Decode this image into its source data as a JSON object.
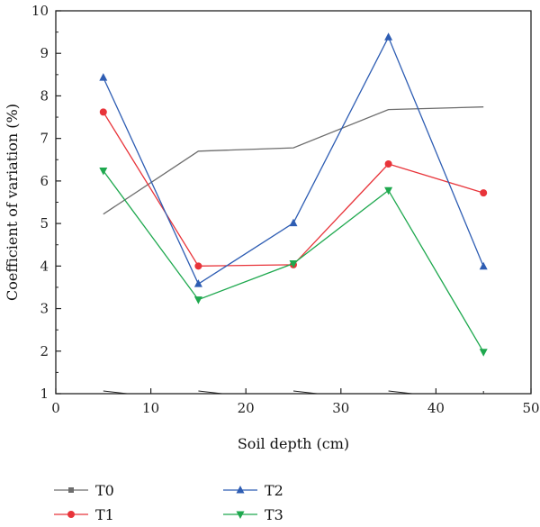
{
  "chart_data": {
    "type": "line",
    "xlabel": "Soil depth (cm)",
    "ylabel": "Coefficient of variation (%)",
    "xlim": [
      0,
      50
    ],
    "ylim": [
      1,
      10
    ],
    "xticks": [
      0,
      10,
      20,
      30,
      40,
      50
    ],
    "yticks": [
      1,
      2,
      3,
      4,
      5,
      6,
      7,
      8,
      9,
      10
    ],
    "grid": false,
    "legend_position": "bottom",
    "x": [
      5,
      15,
      25,
      35,
      45
    ],
    "series": [
      {
        "name": "T0",
        "values": [
          5.22,
          6.7,
          6.78,
          7.68,
          7.74
        ],
        "color": "#6d6d6d",
        "marker": "square"
      },
      {
        "name": "T1",
        "values": [
          7.62,
          4.0,
          4.03,
          6.4,
          5.72
        ],
        "color": "#e8343a",
        "marker": "circle"
      },
      {
        "name": "T2",
        "values": [
          8.43,
          3.58,
          5.01,
          9.38,
          3.99
        ],
        "color": "#2e5db3",
        "marker": "triangle-up"
      },
      {
        "name": "T3",
        "values": [
          6.24,
          3.21,
          4.06,
          5.78,
          1.98
        ],
        "color": "#1ea84e",
        "marker": "triangle-down"
      }
    ]
  }
}
